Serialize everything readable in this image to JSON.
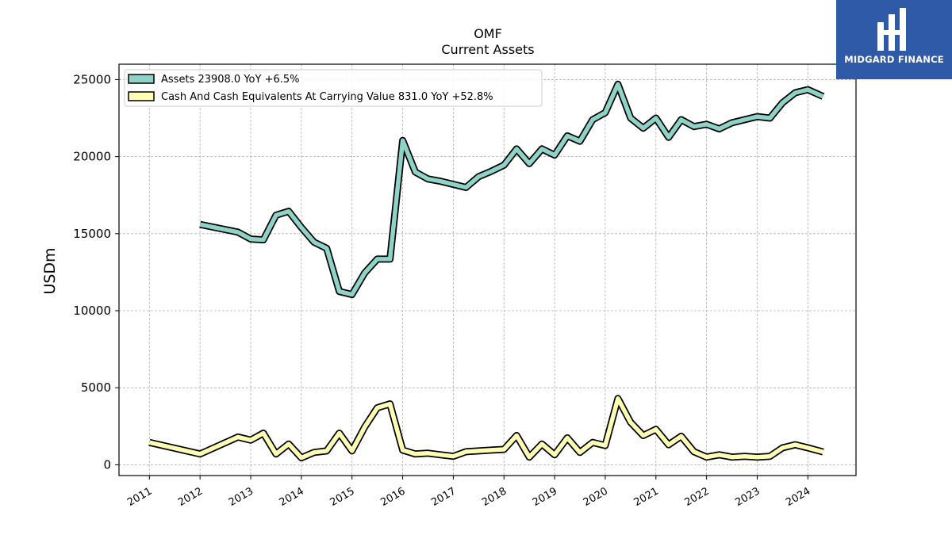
{
  "brand": {
    "name": "MIDGARD FINANCE",
    "bg_color": "#2f5aa8"
  },
  "chart_data": {
    "type": "line",
    "title": "OMF",
    "subtitle": "Current  Assets",
    "ylabel": "USDm",
    "xlabel": "",
    "ylim": [
      -700,
      26000
    ],
    "xlim": [
      2010.4,
      2024.95
    ],
    "yticks": [
      0,
      5000,
      10000,
      15000,
      20000,
      25000
    ],
    "xticks": [
      "2011",
      "2012",
      "2013",
      "2014",
      "2015",
      "2016",
      "2017",
      "2018",
      "2019",
      "2020",
      "2021",
      "2022",
      "2023",
      "2024"
    ],
    "grid": true,
    "legend_position": "top-left",
    "series": [
      {
        "name": "Assets  23908.0 YoY +6.5%",
        "color": "#8dd3c7",
        "points": [
          [
            2012.0,
            15600
          ],
          [
            2012.75,
            15100
          ],
          [
            2013.0,
            14650
          ],
          [
            2013.25,
            14600
          ],
          [
            2013.5,
            16200
          ],
          [
            2013.75,
            16450
          ],
          [
            2014.0,
            15400
          ],
          [
            2014.25,
            14450
          ],
          [
            2014.5,
            14050
          ],
          [
            2014.75,
            11250
          ],
          [
            2015.0,
            11050
          ],
          [
            2015.25,
            12450
          ],
          [
            2015.5,
            13350
          ],
          [
            2015.75,
            13350
          ],
          [
            2016.0,
            21050
          ],
          [
            2016.25,
            19000
          ],
          [
            2016.5,
            18550
          ],
          [
            2016.75,
            18400
          ],
          [
            2017.0,
            18200
          ],
          [
            2017.25,
            18000
          ],
          [
            2017.5,
            18700
          ],
          [
            2017.75,
            19050
          ],
          [
            2018.0,
            19450
          ],
          [
            2018.25,
            20500
          ],
          [
            2018.5,
            19550
          ],
          [
            2018.75,
            20500
          ],
          [
            2019.0,
            20100
          ],
          [
            2019.25,
            21350
          ],
          [
            2019.5,
            21000
          ],
          [
            2019.75,
            22400
          ],
          [
            2020.0,
            22850
          ],
          [
            2020.25,
            24700
          ],
          [
            2020.5,
            22500
          ],
          [
            2020.75,
            21850
          ],
          [
            2021.0,
            22500
          ],
          [
            2021.25,
            21250
          ],
          [
            2021.5,
            22400
          ],
          [
            2021.75,
            21950
          ],
          [
            2022.0,
            22100
          ],
          [
            2022.25,
            21800
          ],
          [
            2022.5,
            22200
          ],
          [
            2022.75,
            22400
          ],
          [
            2023.0,
            22600
          ],
          [
            2023.25,
            22500
          ],
          [
            2023.5,
            23500
          ],
          [
            2023.75,
            24150
          ],
          [
            2024.0,
            24350
          ],
          [
            2024.3,
            23908
          ]
        ]
      },
      {
        "name": "Cash And Cash Equivalents At Carrying Value  831.0 YoY +52.8%",
        "color": "#ffffb3",
        "points": [
          [
            2011.0,
            1450
          ],
          [
            2012.0,
            700
          ],
          [
            2012.75,
            1800
          ],
          [
            2013.0,
            1600
          ],
          [
            2013.25,
            2050
          ],
          [
            2013.5,
            700
          ],
          [
            2013.75,
            1350
          ],
          [
            2014.0,
            450
          ],
          [
            2014.25,
            800
          ],
          [
            2014.5,
            900
          ],
          [
            2014.75,
            2050
          ],
          [
            2015.0,
            900
          ],
          [
            2015.25,
            2450
          ],
          [
            2015.5,
            3700
          ],
          [
            2015.75,
            3950
          ],
          [
            2016.0,
            950
          ],
          [
            2016.25,
            700
          ],
          [
            2016.5,
            750
          ],
          [
            2016.75,
            650
          ],
          [
            2017.0,
            550
          ],
          [
            2017.25,
            850
          ],
          [
            2017.5,
            900
          ],
          [
            2017.75,
            950
          ],
          [
            2018.0,
            1000
          ],
          [
            2018.25,
            1900
          ],
          [
            2018.5,
            500
          ],
          [
            2018.75,
            1350
          ],
          [
            2019.0,
            650
          ],
          [
            2019.25,
            1750
          ],
          [
            2019.5,
            800
          ],
          [
            2019.75,
            1450
          ],
          [
            2020.0,
            1250
          ],
          [
            2020.25,
            4300
          ],
          [
            2020.5,
            2750
          ],
          [
            2020.75,
            1900
          ],
          [
            2021.0,
            2300
          ],
          [
            2021.25,
            1300
          ],
          [
            2021.5,
            1850
          ],
          [
            2021.75,
            850
          ],
          [
            2022.0,
            500
          ],
          [
            2022.25,
            650
          ],
          [
            2022.5,
            500
          ],
          [
            2022.75,
            550
          ],
          [
            2023.0,
            500
          ],
          [
            2023.25,
            550
          ],
          [
            2023.5,
            1100
          ],
          [
            2023.75,
            1300
          ],
          [
            2024.0,
            1100
          ],
          [
            2024.3,
            831
          ]
        ]
      }
    ]
  }
}
